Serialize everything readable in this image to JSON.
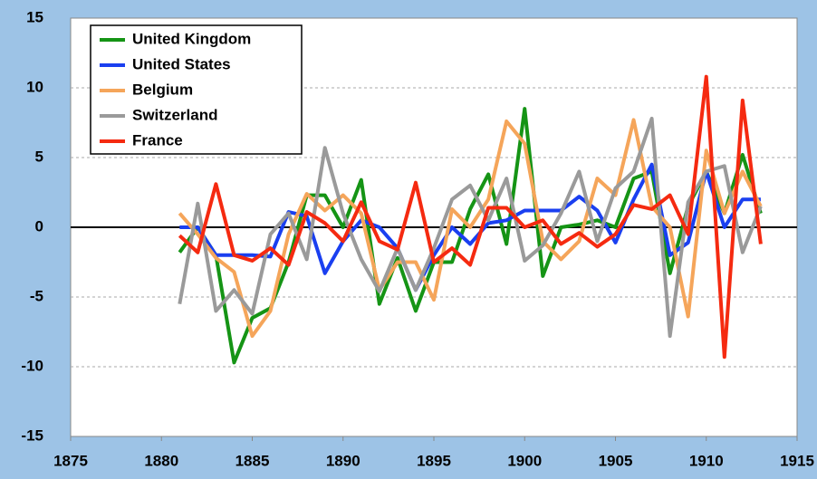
{
  "chart_data": {
    "type": "line",
    "x": [
      1881,
      1882,
      1883,
      1884,
      1885,
      1886,
      1887,
      1888,
      1889,
      1890,
      1891,
      1892,
      1893,
      1894,
      1895,
      1896,
      1897,
      1898,
      1899,
      1900,
      1901,
      1902,
      1903,
      1904,
      1905,
      1906,
      1907,
      1908,
      1909,
      1910,
      1911,
      1912,
      1913
    ],
    "series": [
      {
        "name": "United Kingdom",
        "color": "#159415",
        "values": [
          -1.8,
          0,
          -2,
          -9.7,
          -6.5,
          -5.8,
          -2.5,
          2.3,
          2.3,
          0,
          3.4,
          -5.5,
          -2.2,
          -6,
          -2.5,
          -2.5,
          1.3,
          3.8,
          -1.2,
          8.5,
          -3.5,
          0,
          0.2,
          0.5,
          0,
          3.5,
          4,
          -3.3,
          1.5,
          4,
          1,
          5.2,
          1
        ]
      },
      {
        "name": "United States",
        "color": "#1a3ff0",
        "values": [
          0,
          0,
          -2,
          -2,
          -2,
          -2.1,
          1.1,
          0.8,
          -3.3,
          -1,
          0.5,
          0,
          -1.5,
          -4.5,
          -2,
          0,
          -1.2,
          0.3,
          0.5,
          1.2,
          1.2,
          1.2,
          2.2,
          1.2,
          -1.1,
          2,
          4.5,
          -2,
          -1.1,
          4,
          0,
          2,
          2
        ]
      },
      {
        "name": "Belgium",
        "color": "#f5a55a",
        "values": [
          1,
          -0.5,
          -2.2,
          -3.2,
          -7.8,
          -6,
          -0.5,
          2.4,
          1.2,
          2.3,
          1,
          -4.5,
          -2.5,
          -2.5,
          -5.2,
          1.3,
          0,
          2,
          7.6,
          6,
          -1,
          -2.3,
          -1,
          3.5,
          2.3,
          7.7,
          1.5,
          0,
          -6.4,
          5.5,
          1,
          4,
          1.5
        ]
      },
      {
        "name": "Switzerland",
        "color": "#9a9a9a",
        "values": [
          -5.5,
          1.7,
          -6,
          -4.5,
          -6.2,
          -0.5,
          1,
          -2.3,
          5.7,
          1,
          -2.3,
          -4.6,
          -1.5,
          -4.5,
          -1.5,
          2,
          3,
          0.5,
          3.5,
          -2.4,
          -1.3,
          1,
          4,
          -1,
          2.8,
          4,
          7.8,
          -7.8,
          1.8,
          4,
          4.4,
          -1.8,
          1.5
        ]
      },
      {
        "name": "France",
        "color": "#f52a10",
        "values": [
          -0.6,
          -1.8,
          3.1,
          -2,
          -2.4,
          -1.5,
          -2.7,
          1.1,
          0.3,
          -1,
          1.8,
          -1,
          -1.6,
          3.2,
          -2.5,
          -1.5,
          -2.7,
          1.4,
          1.4,
          0,
          0.5,
          -1.2,
          -0.4,
          -1.4,
          -0.5,
          1.6,
          1.3,
          2.3,
          -0.5,
          10.8,
          -9.3,
          9.1,
          -1.2
        ]
      }
    ],
    "xlim": [
      1875,
      1915
    ],
    "xticks": [
      1875,
      1880,
      1885,
      1890,
      1895,
      1900,
      1905,
      1910,
      1915
    ],
    "ylim": [
      -15,
      15
    ],
    "yticks": [
      -15,
      -10,
      -5,
      0,
      5,
      10,
      15
    ],
    "grid": true,
    "legend": "upper left"
  }
}
